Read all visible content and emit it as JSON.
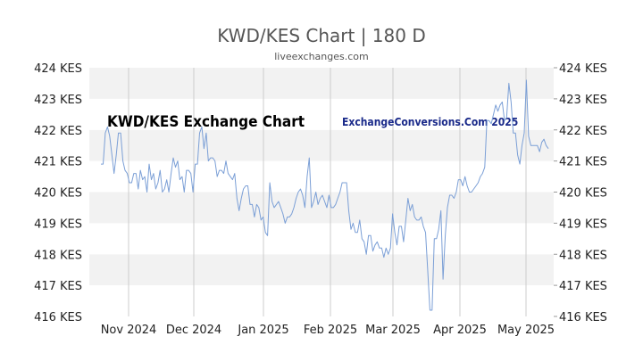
{
  "chart_data": {
    "type": "line",
    "title": "KWD/KES Chart | 180 D",
    "subtitle": "liveexchanges.com",
    "watermark_left": "KWD/KES Exchange Chart",
    "watermark_right": "ExchangeConversions.Com 2025",
    "ylim": [
      416,
      424
    ],
    "y_ticks": [
      {
        "value": 424,
        "label": "424 KES"
      },
      {
        "value": 423,
        "label": "423 KES"
      },
      {
        "value": 422,
        "label": "422 KES"
      },
      {
        "value": 421,
        "label": "421 KES"
      },
      {
        "value": 420,
        "label": "420 KES"
      },
      {
        "value": 419,
        "label": "419 KES"
      },
      {
        "value": 418,
        "label": "418 KES"
      },
      {
        "value": 417,
        "label": "417 KES"
      },
      {
        "value": 416,
        "label": "416 KES"
      }
    ],
    "x_ticks": [
      "Nov 2024",
      "Dec 2024",
      "Jan 2025",
      "Feb 2025",
      "Mar 2025",
      "Apr 2025",
      "May 2025"
    ],
    "grid": "alternating horizontal bands, vertical lines at month ticks",
    "line_color": "#7b9fd6",
    "series": [
      {
        "values": [
          420.9,
          420.9,
          421.9,
          422.1,
          421.8,
          421.2,
          420.6,
          421.2,
          421.9,
          421.9,
          421.0,
          420.7,
          420.6,
          420.3,
          420.3,
          420.6,
          420.6,
          420.1,
          420.7,
          420.4,
          420.5,
          420.0,
          420.9,
          420.4,
          420.6,
          420.1,
          420.3,
          420.7,
          420.0,
          420.1,
          420.4,
          420.0,
          420.6,
          421.1,
          420.8,
          421.0,
          420.4,
          420.5,
          420.0,
          420.7,
          420.7,
          420.6,
          420.0,
          420.9,
          420.9,
          421.9,
          422.1,
          421.4,
          421.9,
          421.0,
          421.1,
          421.1,
          421.0,
          420.5,
          420.7,
          420.7,
          420.6,
          421.0,
          420.6,
          420.5,
          420.4,
          420.6,
          419.8,
          419.4,
          419.8,
          420.1,
          420.2,
          420.2,
          419.6,
          419.6,
          419.2,
          419.6,
          419.5,
          419.1,
          419.2,
          418.7,
          418.6,
          420.3,
          419.7,
          419.5,
          419.6,
          419.7,
          419.5,
          419.3,
          419.0,
          419.2,
          419.2,
          419.3,
          419.5,
          419.8,
          420.0,
          420.1,
          419.9,
          419.5,
          420.5,
          421.1,
          419.5,
          419.7,
          420.0,
          419.6,
          419.8,
          419.9,
          419.7,
          419.5,
          419.9,
          419.5,
          419.5,
          419.6,
          419.8,
          420.0,
          420.3,
          420.3,
          420.3,
          419.4,
          418.8,
          419.0,
          418.7,
          418.7,
          419.1,
          418.5,
          418.4,
          418.0,
          418.6,
          418.6,
          418.1,
          418.3,
          418.4,
          418.2,
          418.2,
          417.9,
          418.2,
          418.0,
          418.2,
          419.3,
          418.7,
          418.3,
          418.9,
          418.9,
          418.4,
          419.1,
          419.8,
          419.4,
          419.6,
          419.2,
          419.1,
          419.1,
          419.2,
          418.9,
          418.7,
          417.5,
          416.2,
          416.2,
          418.5,
          418.5,
          418.8,
          419.4,
          417.2,
          418.6,
          419.5,
          419.9,
          419.9,
          419.8,
          420.0,
          420.4,
          420.4,
          420.2,
          420.5,
          420.2,
          420.0,
          420.0,
          420.1,
          420.2,
          420.3,
          420.5,
          420.6,
          420.8,
          422.3,
          422.3,
          422.2,
          422.5,
          422.8,
          422.6,
          422.8,
          422.9,
          422.3,
          422.4,
          423.5,
          422.9,
          421.9,
          421.9,
          421.2,
          420.9,
          421.5,
          421.9,
          423.6,
          421.8,
          421.5,
          421.5,
          421.5,
          421.5,
          421.3,
          421.6,
          421.7,
          421.5,
          421.4
        ]
      }
    ]
  }
}
